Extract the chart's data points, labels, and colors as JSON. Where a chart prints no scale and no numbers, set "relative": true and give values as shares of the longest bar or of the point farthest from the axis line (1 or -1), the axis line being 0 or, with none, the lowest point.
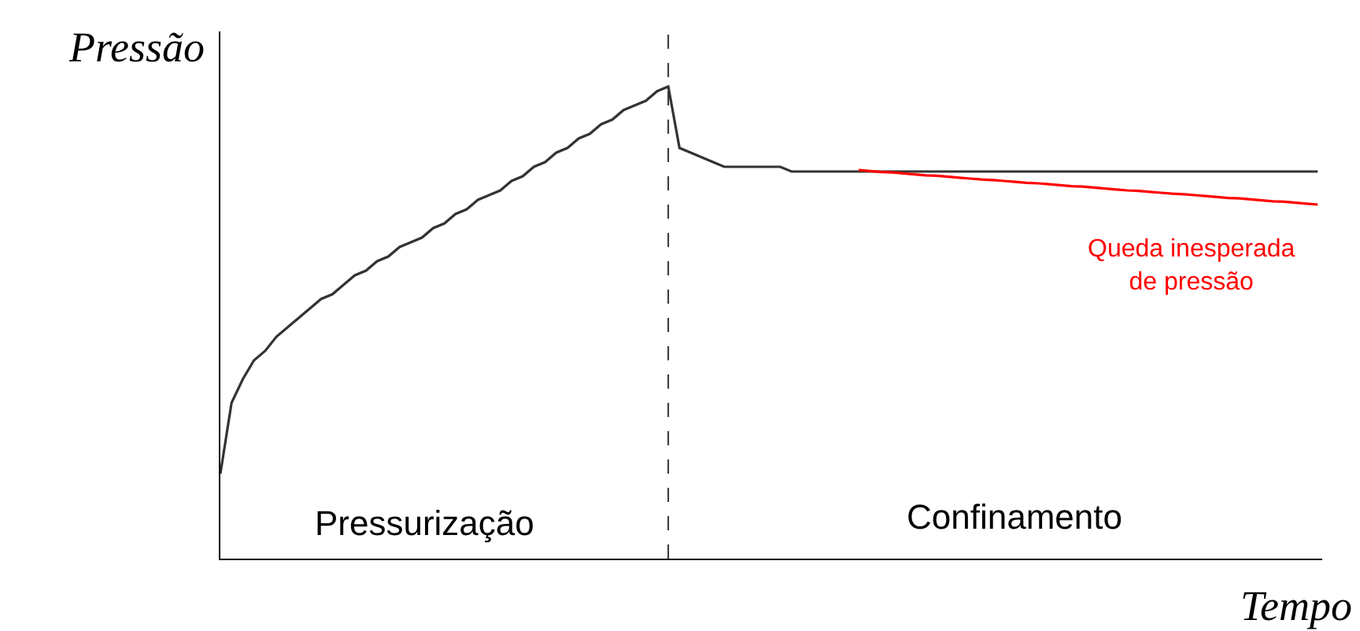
{
  "chart_data": {
    "type": "line",
    "relative": true,
    "marker": "none",
    "line_style": "solid",
    "xlabel": "Tempo",
    "ylabel": "Pressão",
    "categories": [
      null,
      null,
      null,
      null,
      null,
      null,
      null,
      null,
      null,
      null,
      null,
      null,
      null,
      null,
      null,
      null,
      null,
      null,
      null,
      null,
      null,
      null,
      null,
      null,
      null,
      null,
      null,
      null,
      null,
      null,
      null,
      null,
      null,
      null,
      null,
      null,
      null,
      null,
      null,
      null,
      null,
      null,
      null,
      null,
      null,
      null,
      null,
      null,
      null,
      null,
      null,
      null,
      null,
      null,
      null,
      null,
      null,
      null,
      null,
      null,
      null,
      null,
      null,
      null,
      null,
      null,
      null,
      null,
      null,
      null,
      null,
      null,
      null,
      null,
      null,
      null,
      null,
      null,
      null,
      null,
      null,
      null,
      null,
      null,
      null,
      null,
      null,
      null,
      null,
      null,
      null,
      null,
      null,
      null,
      null,
      null,
      null,
      null,
      null
    ],
    "series": [
      {
        "color": "#333333",
        "values": [
          0.18,
          0.33,
          0.38,
          0.42,
          0.44,
          0.47,
          0.49,
          0.51,
          0.53,
          0.55,
          0.56,
          0.58,
          0.6,
          0.61,
          0.63,
          0.64,
          0.66,
          0.67,
          0.68,
          0.7,
          0.71,
          0.73,
          0.74,
          0.76,
          0.77,
          0.78,
          0.8,
          0.81,
          0.83,
          0.84,
          0.86,
          0.87,
          0.89,
          0.9,
          0.92,
          0.93,
          0.95,
          0.96,
          0.97,
          0.99,
          1.0,
          0.87,
          0.86,
          0.85,
          0.84,
          0.83,
          0.83,
          0.83,
          0.83,
          0.83,
          0.83,
          0.82,
          0.82,
          0.82,
          0.82,
          0.82,
          0.82,
          0.82,
          0.82,
          0.82,
          0.82,
          0.82,
          0.82,
          0.82,
          0.82,
          0.82,
          0.82,
          0.82,
          0.82,
          0.82,
          0.82,
          0.82,
          0.82,
          0.82,
          0.82,
          0.82,
          0.82,
          0.82,
          0.82,
          0.82,
          0.82,
          0.82,
          0.82,
          0.82,
          0.82,
          0.82,
          0.82,
          0.82,
          0.82,
          0.82,
          0.82,
          0.82,
          0.82,
          0.82,
          0.82,
          0.82,
          0.82,
          0.82,
          0.82
        ]
      },
      {
        "color": "#ff0000",
        "values": [
          null,
          null,
          null,
          null,
          null,
          null,
          null,
          null,
          null,
          null,
          null,
          null,
          null,
          null,
          null,
          null,
          null,
          null,
          null,
          null,
          null,
          null,
          null,
          null,
          null,
          null,
          null,
          null,
          null,
          null,
          null,
          null,
          null,
          null,
          null,
          null,
          null,
          null,
          null,
          null,
          null,
          null,
          null,
          null,
          null,
          null,
          null,
          null,
          null,
          null,
          null,
          null,
          null,
          null,
          null,
          null,
          null,
          0.823,
          0.821,
          0.819,
          0.818,
          0.816,
          0.814,
          0.812,
          0.811,
          0.809,
          0.807,
          0.805,
          0.803,
          0.802,
          0.8,
          0.798,
          0.796,
          0.795,
          0.793,
          0.791,
          0.789,
          0.788,
          0.786,
          0.784,
          0.782,
          0.78,
          0.779,
          0.777,
          0.775,
          0.773,
          0.772,
          0.77,
          0.768,
          0.766,
          0.764,
          0.763,
          0.761,
          0.759,
          0.757,
          0.756,
          0.754,
          0.752,
          0.75
        ]
      }
    ],
    "annotations": [
      "Pressurização",
      "Confinamento",
      "Queda inesperada\nde pressão"
    ]
  }
}
